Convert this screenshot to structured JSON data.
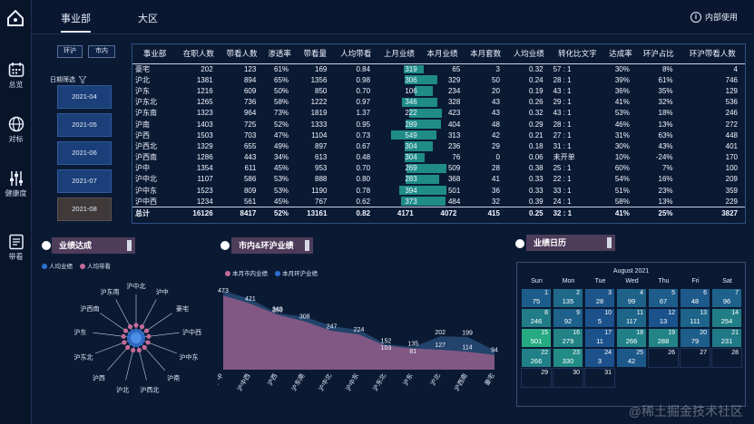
{
  "topbar": {
    "tabs": [
      {
        "label": "事业部",
        "active": true
      },
      {
        "label": "大区",
        "active": false
      }
    ],
    "info_label": "内部使用"
  },
  "sidebar": {
    "items": [
      {
        "label": "总览",
        "icon": "calendar-icon"
      },
      {
        "label": "对标",
        "icon": "globe-icon"
      },
      {
        "label": "健康度",
        "icon": "sliders-icon"
      },
      {
        "label": "带看",
        "icon": "document-icon"
      }
    ]
  },
  "filter": {
    "seg_ring": "环沪",
    "seg_city": "市内",
    "date_label": "日期筛选",
    "months": [
      "2021-04",
      "2021-05",
      "2021-06",
      "2021-07",
      "2021-08"
    ],
    "selected_month": "2021-08"
  },
  "table": {
    "headers": [
      "事业部",
      "在职人数",
      "带看人数",
      "渗透率",
      "带看量",
      "人均带看",
      "上月业绩",
      "本月业绩",
      "本月套数",
      "人均业绩",
      "转化比文字",
      "达成率",
      "环沪占比",
      "环沪带看人数"
    ],
    "rows": [
      [
        "豪宅",
        "202",
        "123",
        "61%",
        "169",
        "0.84",
        "319",
        "65",
        "3",
        "0.32",
        "57 : 1",
        "30%",
        "8%",
        "4"
      ],
      [
        "沪北",
        "1381",
        "894",
        "65%",
        "1356",
        "0.98",
        "306",
        "329",
        "50",
        "0.24",
        "28 : 1",
        "39%",
        "61%",
        "746"
      ],
      [
        "沪东",
        "1216",
        "609",
        "50%",
        "850",
        "0.70",
        "106",
        "234",
        "20",
        "0.19",
        "43 : 1",
        "36%",
        "35%",
        "129"
      ],
      [
        "沪东北",
        "1265",
        "736",
        "58%",
        "1222",
        "0.97",
        "346",
        "328",
        "43",
        "0.26",
        "29 : 1",
        "41%",
        "32%",
        "536"
      ],
      [
        "沪东南",
        "1323",
        "964",
        "73%",
        "1819",
        "1.37",
        "222",
        "423",
        "43",
        "0.32",
        "43 : 1",
        "53%",
        "18%",
        "246"
      ],
      [
        "沪南",
        "1403",
        "725",
        "52%",
        "1333",
        "0.95",
        "289",
        "404",
        "48",
        "0.29",
        "28 : 1",
        "46%",
        "13%",
        "272"
      ],
      [
        "沪西",
        "1503",
        "703",
        "47%",
        "1104",
        "0.73",
        "549",
        "313",
        "42",
        "0.21",
        "27 : 1",
        "31%",
        "63%",
        "448"
      ],
      [
        "沪西北",
        "1329",
        "655",
        "49%",
        "897",
        "0.67",
        "304",
        "236",
        "29",
        "0.18",
        "31 : 1",
        "30%",
        "43%",
        "401"
      ],
      [
        "沪西南",
        "1286",
        "443",
        "34%",
        "613",
        "0.48",
        "304",
        "76",
        "0",
        "0.06",
        "未开单",
        "10%",
        "-24%",
        "170"
      ],
      [
        "沪中",
        "1354",
        "611",
        "45%",
        "953",
        "0.70",
        "269",
        "509",
        "28",
        "0.38",
        "25 : 1",
        "60%",
        "7%",
        "100"
      ],
      [
        "沪中北",
        "1107",
        "586",
        "53%",
        "888",
        "0.80",
        "283",
        "368",
        "41",
        "0.33",
        "22 : 1",
        "54%",
        "16%",
        "209"
      ],
      [
        "沪中东",
        "1523",
        "809",
        "53%",
        "1190",
        "0.78",
        "394",
        "501",
        "36",
        "0.33",
        "33 : 1",
        "51%",
        "23%",
        "359"
      ],
      [
        "沪中西",
        "1234",
        "561",
        "45%",
        "767",
        "0.62",
        "373",
        "484",
        "32",
        "0.39",
        "24 : 1",
        "58%",
        "13%",
        "229"
      ]
    ],
    "total": [
      "总计",
      "16126",
      "8417",
      "52%",
      "13161",
      "0.82",
      "4171",
      "4072",
      "415",
      "0.25",
      "32 : 1",
      "41%",
      "25%",
      "3827"
    ]
  },
  "panels": {
    "radar_title": "业绩达成",
    "area_title": "市内&环沪业绩",
    "calendar_title": "业绩日历"
  },
  "radar": {
    "legend": [
      "人均业绩",
      "人均带看"
    ],
    "colors": [
      "#2d6fd0",
      "#c46b9a"
    ],
    "labels": [
      "沪中北",
      "沪中",
      "豪宅",
      "沪中西",
      "沪中东",
      "沪南",
      "沪西北",
      "沪北",
      "沪西",
      "沪东北",
      "沪东",
      "沪西南",
      "沪东南"
    ]
  },
  "chart_data": {
    "type": "area",
    "series": [
      {
        "name": "本月市内业绩",
        "color": "#8a5a86",
        "values": [
          473,
          421,
          350,
          308,
          247,
          224,
          152,
          135,
          127,
          114,
          94
        ]
      },
      {
        "name": "本月环沪业绩",
        "color": "#24466f",
        "values": [
          null,
          null,
          349,
          null,
          null,
          null,
          103,
          81,
          202,
          199,
          null
        ]
      }
    ],
    "categories": [
      "沪中",
      "沪中西",
      "沪西",
      "沪东南",
      "沪中北",
      "沪中东",
      "沪东北",
      "沪东",
      "沪北",
      "沪西南",
      "豪宅"
    ]
  },
  "calendar": {
    "title": "August 2021",
    "weekdays": [
      "Sun",
      "Mon",
      "Tue",
      "Wed",
      "Thu",
      "Fri",
      "Sat"
    ],
    "days": [
      {
        "d": 1,
        "v": "75"
      },
      {
        "d": 2,
        "v": "135"
      },
      {
        "d": 3,
        "v": "28"
      },
      {
        "d": 4,
        "v": "99"
      },
      {
        "d": 5,
        "v": "67"
      },
      {
        "d": 6,
        "v": "48"
      },
      {
        "d": 7,
        "v": "96"
      },
      {
        "d": 8,
        "v": "246"
      },
      {
        "d": 9,
        "v": "92"
      },
      {
        "d": 10,
        "v": "5"
      },
      {
        "d": 11,
        "v": "117"
      },
      {
        "d": 12,
        "v": "13"
      },
      {
        "d": 13,
        "v": "111"
      },
      {
        "d": 14,
        "v": "254"
      },
      {
        "d": 15,
        "v": "501"
      },
      {
        "d": 16,
        "v": "279"
      },
      {
        "d": 17,
        "v": "11"
      },
      {
        "d": 18,
        "v": "266"
      },
      {
        "d": 19,
        "v": "288"
      },
      {
        "d": 20,
        "v": "79"
      },
      {
        "d": 21,
        "v": "231"
      },
      {
        "d": 22,
        "v": "266"
      },
      {
        "d": 23,
        "v": "330"
      },
      {
        "d": 24,
        "v": "3"
      },
      {
        "d": 25,
        "v": "42"
      },
      {
        "d": 26,
        "v": ""
      },
      {
        "d": 27,
        "v": ""
      },
      {
        "d": 28,
        "v": ""
      },
      {
        "d": 29,
        "v": ""
      },
      {
        "d": 30,
        "v": ""
      },
      {
        "d": 31,
        "v": ""
      }
    ]
  },
  "watermark": "@稀土掘金技术社区"
}
